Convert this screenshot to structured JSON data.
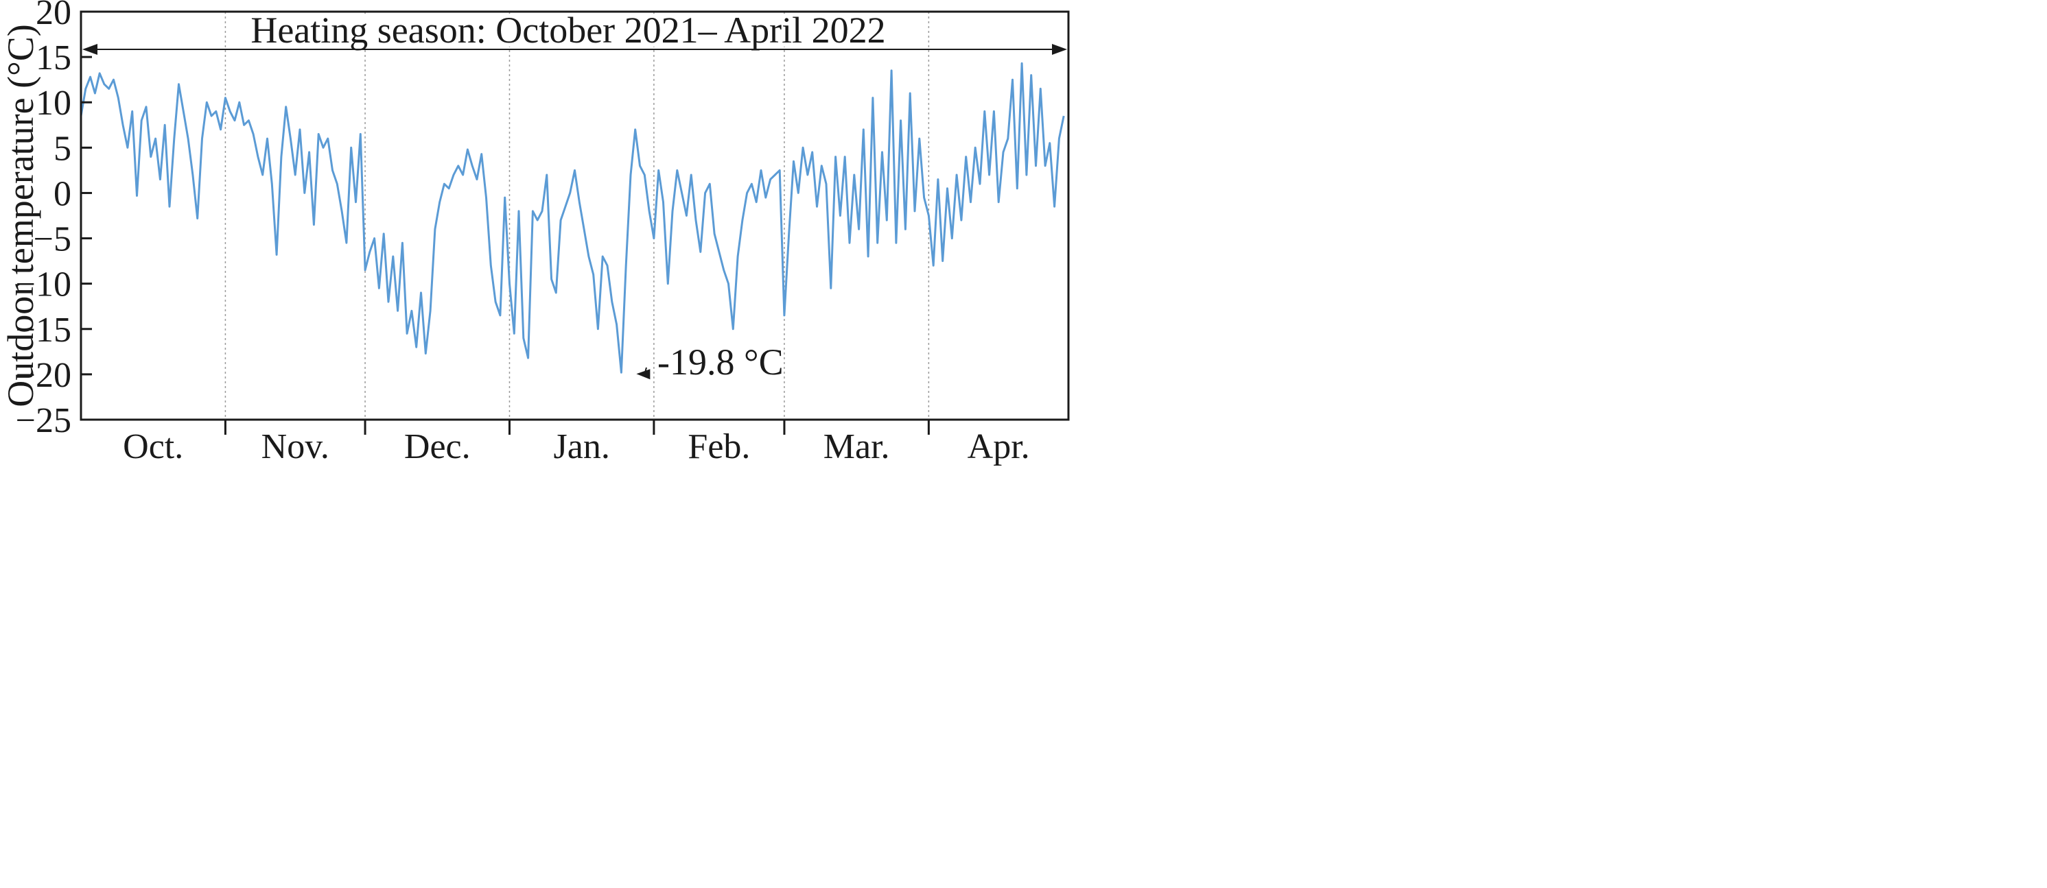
{
  "chart_data": {
    "type": "line",
    "title": "",
    "xlabel": "",
    "ylabel": "Outdoor temperature (°C)",
    "ylim": [
      -25,
      20
    ],
    "yticks": [
      20,
      15,
      10,
      5,
      0,
      -5,
      -10,
      -15,
      -20,
      -25
    ],
    "ytick_labels": [
      "20",
      "15",
      "10",
      "5",
      "0",
      "−5",
      "−10",
      "−15",
      "−20",
      "−25"
    ],
    "grid": "vertical dotted lines at month boundaries",
    "series_color": "#5b9bd5",
    "months": [
      {
        "label": "Oct.",
        "days": 31
      },
      {
        "label": "Nov.",
        "days": 30
      },
      {
        "label": "Dec.",
        "days": 31
      },
      {
        "label": "Jan.",
        "days": 31
      },
      {
        "label": "Feb.",
        "days": 28
      },
      {
        "label": "Mar.",
        "days": 31
      },
      {
        "label": "Apr.",
        "days": 30
      }
    ],
    "season_annotation": "Heating season: October 2021– April 2022",
    "min_annotation": {
      "text": "-19.8 °C",
      "value": -19.8
    },
    "series": [
      {
        "x_unit": "date",
        "values": [
          [
            "2021-10-01",
            8.5
          ],
          [
            "2021-10-02",
            11.5
          ],
          [
            "2021-10-03",
            12.8
          ],
          [
            "2021-10-04",
            11.0
          ],
          [
            "2021-10-05",
            13.2
          ],
          [
            "2021-10-06",
            12.0
          ],
          [
            "2021-10-07",
            11.5
          ],
          [
            "2021-10-08",
            12.5
          ],
          [
            "2021-10-09",
            10.5
          ],
          [
            "2021-10-10",
            7.5
          ],
          [
            "2021-10-11",
            5.0
          ],
          [
            "2021-10-12",
            9.0
          ],
          [
            "2021-10-13",
            -0.3
          ],
          [
            "2021-10-14",
            8.0
          ],
          [
            "2021-10-15",
            9.5
          ],
          [
            "2021-10-16",
            4.0
          ],
          [
            "2021-10-17",
            6.0
          ],
          [
            "2021-10-18",
            1.5
          ],
          [
            "2021-10-19",
            7.5
          ],
          [
            "2021-10-20",
            -1.5
          ],
          [
            "2021-10-21",
            6.0
          ],
          [
            "2021-10-22",
            12.0
          ],
          [
            "2021-10-23",
            9.0
          ],
          [
            "2021-10-24",
            6.0
          ],
          [
            "2021-10-25",
            2.0
          ],
          [
            "2021-10-26",
            -2.8
          ],
          [
            "2021-10-27",
            6.0
          ],
          [
            "2021-10-28",
            10.0
          ],
          [
            "2021-10-29",
            8.5
          ],
          [
            "2021-10-30",
            9.0
          ],
          [
            "2021-10-31",
            7.0
          ],
          [
            "2021-11-01",
            10.5
          ],
          [
            "2021-11-02",
            9.0
          ],
          [
            "2021-11-03",
            8.0
          ],
          [
            "2021-11-04",
            10.0
          ],
          [
            "2021-11-05",
            7.5
          ],
          [
            "2021-11-06",
            8.0
          ],
          [
            "2021-11-07",
            6.5
          ],
          [
            "2021-11-08",
            4.0
          ],
          [
            "2021-11-09",
            2.0
          ],
          [
            "2021-11-10",
            6.0
          ],
          [
            "2021-11-11",
            1.0
          ],
          [
            "2021-11-12",
            -6.8
          ],
          [
            "2021-11-13",
            4.0
          ],
          [
            "2021-11-14",
            9.5
          ],
          [
            "2021-11-15",
            6.0
          ],
          [
            "2021-11-16",
            2.0
          ],
          [
            "2021-11-17",
            7.0
          ],
          [
            "2021-11-18",
            0.0
          ],
          [
            "2021-11-19",
            4.5
          ],
          [
            "2021-11-20",
            -3.5
          ],
          [
            "2021-11-21",
            6.5
          ],
          [
            "2021-11-22",
            5.0
          ],
          [
            "2021-11-23",
            6.0
          ],
          [
            "2021-11-24",
            2.5
          ],
          [
            "2021-11-25",
            1.0
          ],
          [
            "2021-11-26",
            -2.0
          ],
          [
            "2021-11-27",
            -5.5
          ],
          [
            "2021-11-28",
            5.0
          ],
          [
            "2021-11-29",
            -1.0
          ],
          [
            "2021-11-30",
            6.5
          ],
          [
            "2021-12-01",
            -8.5
          ],
          [
            "2021-12-02",
            -6.5
          ],
          [
            "2021-12-03",
            -5.0
          ],
          [
            "2021-12-04",
            -10.5
          ],
          [
            "2021-12-05",
            -4.5
          ],
          [
            "2021-12-06",
            -12.0
          ],
          [
            "2021-12-07",
            -7.0
          ],
          [
            "2021-12-08",
            -13.0
          ],
          [
            "2021-12-09",
            -5.5
          ],
          [
            "2021-12-10",
            -15.5
          ],
          [
            "2021-12-11",
            -13.0
          ],
          [
            "2021-12-12",
            -17.0
          ],
          [
            "2021-12-13",
            -11.0
          ],
          [
            "2021-12-14",
            -17.7
          ],
          [
            "2021-12-15",
            -13.0
          ],
          [
            "2021-12-16",
            -4.0
          ],
          [
            "2021-12-17",
            -1.0
          ],
          [
            "2021-12-18",
            1.0
          ],
          [
            "2021-12-19",
            0.5
          ],
          [
            "2021-12-20",
            2.0
          ],
          [
            "2021-12-21",
            3.0
          ],
          [
            "2021-12-22",
            2.0
          ],
          [
            "2021-12-23",
            4.8
          ],
          [
            "2021-12-24",
            3.0
          ],
          [
            "2021-12-25",
            1.5
          ],
          [
            "2021-12-26",
            4.3
          ],
          [
            "2021-12-27",
            -0.5
          ],
          [
            "2021-12-28",
            -8.0
          ],
          [
            "2021-12-29",
            -12.0
          ],
          [
            "2021-12-30",
            -13.5
          ],
          [
            "2021-12-31",
            -0.5
          ],
          [
            "2022-01-01",
            -10.0
          ],
          [
            "2022-01-02",
            -15.5
          ],
          [
            "2022-01-03",
            -2.0
          ],
          [
            "2022-01-04",
            -16.0
          ],
          [
            "2022-01-05",
            -18.2
          ],
          [
            "2022-01-06",
            -2.0
          ],
          [
            "2022-01-07",
            -3.0
          ],
          [
            "2022-01-08",
            -2.0
          ],
          [
            "2022-01-09",
            2.0
          ],
          [
            "2022-01-10",
            -9.5
          ],
          [
            "2022-01-11",
            -11.0
          ],
          [
            "2022-01-12",
            -3.0
          ],
          [
            "2022-01-13",
            -1.5
          ],
          [
            "2022-01-14",
            0.0
          ],
          [
            "2022-01-15",
            2.5
          ],
          [
            "2022-01-16",
            -1.0
          ],
          [
            "2022-01-17",
            -4.0
          ],
          [
            "2022-01-18",
            -7.0
          ],
          [
            "2022-01-19",
            -9.0
          ],
          [
            "2022-01-20",
            -15.0
          ],
          [
            "2022-01-21",
            -7.0
          ],
          [
            "2022-01-22",
            -8.0
          ],
          [
            "2022-01-23",
            -12.0
          ],
          [
            "2022-01-24",
            -14.5
          ],
          [
            "2022-01-25",
            -19.8
          ],
          [
            "2022-01-26",
            -8.0
          ],
          [
            "2022-01-27",
            2.0
          ],
          [
            "2022-01-28",
            7.0
          ],
          [
            "2022-01-29",
            3.0
          ],
          [
            "2022-01-30",
            2.0
          ],
          [
            "2022-01-31",
            -2.0
          ],
          [
            "2022-02-01",
            -5.0
          ],
          [
            "2022-02-02",
            2.5
          ],
          [
            "2022-02-03",
            -1.0
          ],
          [
            "2022-02-04",
            -10.0
          ],
          [
            "2022-02-05",
            -2.0
          ],
          [
            "2022-02-06",
            2.5
          ],
          [
            "2022-02-07",
            0.0
          ],
          [
            "2022-02-08",
            -2.5
          ],
          [
            "2022-02-09",
            2.0
          ],
          [
            "2022-02-10",
            -3.0
          ],
          [
            "2022-02-11",
            -6.5
          ],
          [
            "2022-02-12",
            0.0
          ],
          [
            "2022-02-13",
            1.0
          ],
          [
            "2022-02-14",
            -4.5
          ],
          [
            "2022-02-15",
            -6.5
          ],
          [
            "2022-02-16",
            -8.5
          ],
          [
            "2022-02-17",
            -10.0
          ],
          [
            "2022-02-18",
            -15.0
          ],
          [
            "2022-02-19",
            -7.0
          ],
          [
            "2022-02-20",
            -3.0
          ],
          [
            "2022-02-21",
            0.0
          ],
          [
            "2022-02-22",
            1.0
          ],
          [
            "2022-02-23",
            -1.0
          ],
          [
            "2022-02-24",
            2.5
          ],
          [
            "2022-02-25",
            -0.5
          ],
          [
            "2022-02-26",
            1.5
          ],
          [
            "2022-02-27",
            2.0
          ],
          [
            "2022-02-28",
            2.5
          ],
          [
            "2022-03-01",
            -13.5
          ],
          [
            "2022-03-02",
            -4.5
          ],
          [
            "2022-03-03",
            3.5
          ],
          [
            "2022-03-04",
            0.0
          ],
          [
            "2022-03-05",
            5.0
          ],
          [
            "2022-03-06",
            2.0
          ],
          [
            "2022-03-07",
            4.5
          ],
          [
            "2022-03-08",
            -1.5
          ],
          [
            "2022-03-09",
            3.0
          ],
          [
            "2022-03-10",
            1.0
          ],
          [
            "2022-03-11",
            -10.5
          ],
          [
            "2022-03-12",
            4.0
          ],
          [
            "2022-03-13",
            -2.5
          ],
          [
            "2022-03-14",
            4.0
          ],
          [
            "2022-03-15",
            -5.5
          ],
          [
            "2022-03-16",
            2.0
          ],
          [
            "2022-03-17",
            -4.0
          ],
          [
            "2022-03-18",
            7.0
          ],
          [
            "2022-03-19",
            -7.0
          ],
          [
            "2022-03-20",
            10.5
          ],
          [
            "2022-03-21",
            -5.5
          ],
          [
            "2022-03-22",
            4.5
          ],
          [
            "2022-03-23",
            -3.0
          ],
          [
            "2022-03-24",
            13.5
          ],
          [
            "2022-03-25",
            -5.5
          ],
          [
            "2022-03-26",
            8.0
          ],
          [
            "2022-03-27",
            -4.0
          ],
          [
            "2022-03-28",
            11.0
          ],
          [
            "2022-03-29",
            -2.0
          ],
          [
            "2022-03-30",
            6.0
          ],
          [
            "2022-03-31",
            -0.5
          ],
          [
            "2022-04-01",
            -2.5
          ],
          [
            "2022-04-02",
            -8.0
          ],
          [
            "2022-04-03",
            1.5
          ],
          [
            "2022-04-04",
            -7.5
          ],
          [
            "2022-04-05",
            0.5
          ],
          [
            "2022-04-06",
            -5.0
          ],
          [
            "2022-04-07",
            2.0
          ],
          [
            "2022-04-08",
            -3.0
          ],
          [
            "2022-04-09",
            4.0
          ],
          [
            "2022-04-10",
            -1.0
          ],
          [
            "2022-04-11",
            5.0
          ],
          [
            "2022-04-12",
            1.0
          ],
          [
            "2022-04-13",
            9.0
          ],
          [
            "2022-04-14",
            2.0
          ],
          [
            "2022-04-15",
            9.0
          ],
          [
            "2022-04-16",
            -1.0
          ],
          [
            "2022-04-17",
            4.5
          ],
          [
            "2022-04-18",
            6.0
          ],
          [
            "2022-04-19",
            12.5
          ],
          [
            "2022-04-20",
            0.5
          ],
          [
            "2022-04-21",
            14.3
          ],
          [
            "2022-04-22",
            2.0
          ],
          [
            "2022-04-23",
            13.0
          ],
          [
            "2022-04-24",
            3.0
          ],
          [
            "2022-04-25",
            11.5
          ],
          [
            "2022-04-26",
            3.0
          ],
          [
            "2022-04-27",
            5.5
          ],
          [
            "2022-04-28",
            -1.5
          ],
          [
            "2022-04-29",
            6.0
          ],
          [
            "2022-04-30",
            8.5
          ]
        ]
      }
    ]
  }
}
